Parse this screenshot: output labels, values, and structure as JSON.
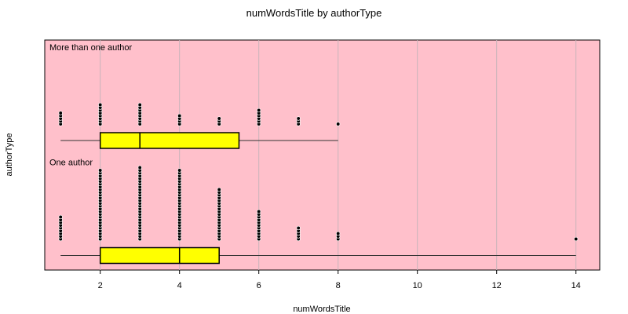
{
  "chart_data": {
    "type": "dotplot-boxplot",
    "title": "numWordsTitle by authorType",
    "xlabel": "numWordsTitle",
    "ylabel": "authorType",
    "xlim": [
      0.6,
      14.6
    ],
    "x_ticks": [
      2,
      4,
      6,
      8,
      10,
      12,
      14
    ],
    "grid": true,
    "colors": {
      "panel_bg": "#ffc0cb",
      "box_fill": "#ffff00",
      "grid": "#c8b4ba"
    },
    "groups": [
      {
        "name": "More than one author",
        "box": {
          "min": 1,
          "q1": 2,
          "median": 3,
          "q3": 5.5,
          "max": 8
        },
        "counts": [
          {
            "x": 1,
            "n": 5
          },
          {
            "x": 2,
            "n": 8
          },
          {
            "x": 3,
            "n": 8
          },
          {
            "x": 4,
            "n": 4
          },
          {
            "x": 5,
            "n": 3
          },
          {
            "x": 6,
            "n": 6
          },
          {
            "x": 7,
            "n": 3
          },
          {
            "x": 8,
            "n": 1
          }
        ]
      },
      {
        "name": "One author",
        "box": {
          "min": 1,
          "q1": 2,
          "median": 4,
          "q3": 5,
          "max": 14
        },
        "counts": [
          {
            "x": 1,
            "n": 9
          },
          {
            "x": 2,
            "n": 26
          },
          {
            "x": 3,
            "n": 27
          },
          {
            "x": 4,
            "n": 26
          },
          {
            "x": 5,
            "n": 19
          },
          {
            "x": 6,
            "n": 11
          },
          {
            "x": 7,
            "n": 5
          },
          {
            "x": 8,
            "n": 3
          },
          {
            "x": 14,
            "n": 1
          }
        ]
      }
    ]
  }
}
